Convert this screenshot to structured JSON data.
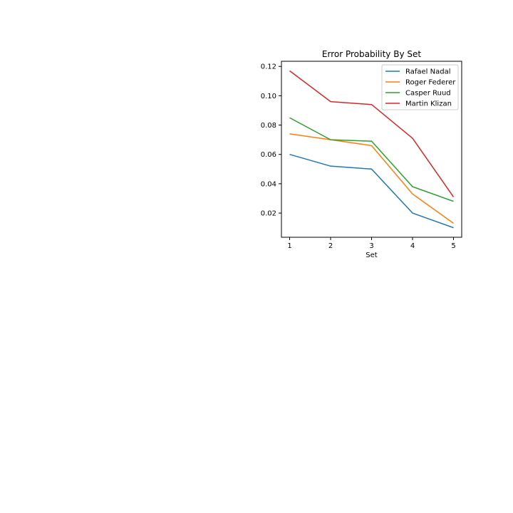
{
  "chart_data": {
    "type": "line",
    "title": "Error Probability By Set",
    "xlabel": "Set",
    "ylabel": "",
    "x": [
      1,
      2,
      3,
      4,
      5
    ],
    "x_ticks": [
      "1",
      "2",
      "3",
      "4",
      "5"
    ],
    "y_ticks": [
      "0.02",
      "0.04",
      "0.06",
      "0.08",
      "0.10",
      "0.12"
    ],
    "xlim": [
      0.8,
      5.2
    ],
    "ylim": [
      0.0035,
      0.1235
    ],
    "grid": false,
    "legend_position": "upper right",
    "series": [
      {
        "name": "Rafael Nadal",
        "color": "#1f77b4",
        "values": [
          0.06,
          0.052,
          0.05,
          0.02,
          0.01
        ]
      },
      {
        "name": "Roger Federer",
        "color": "#ff7f0e",
        "values": [
          0.074,
          0.07,
          0.066,
          0.033,
          0.013
        ]
      },
      {
        "name": "Casper Ruud",
        "color": "#2ca02c",
        "values": [
          0.085,
          0.07,
          0.069,
          0.038,
          0.028
        ]
      },
      {
        "name": "Martin Klizan",
        "color": "#d62728",
        "values": [
          0.117,
          0.096,
          0.094,
          0.071,
          0.031
        ]
      }
    ]
  }
}
